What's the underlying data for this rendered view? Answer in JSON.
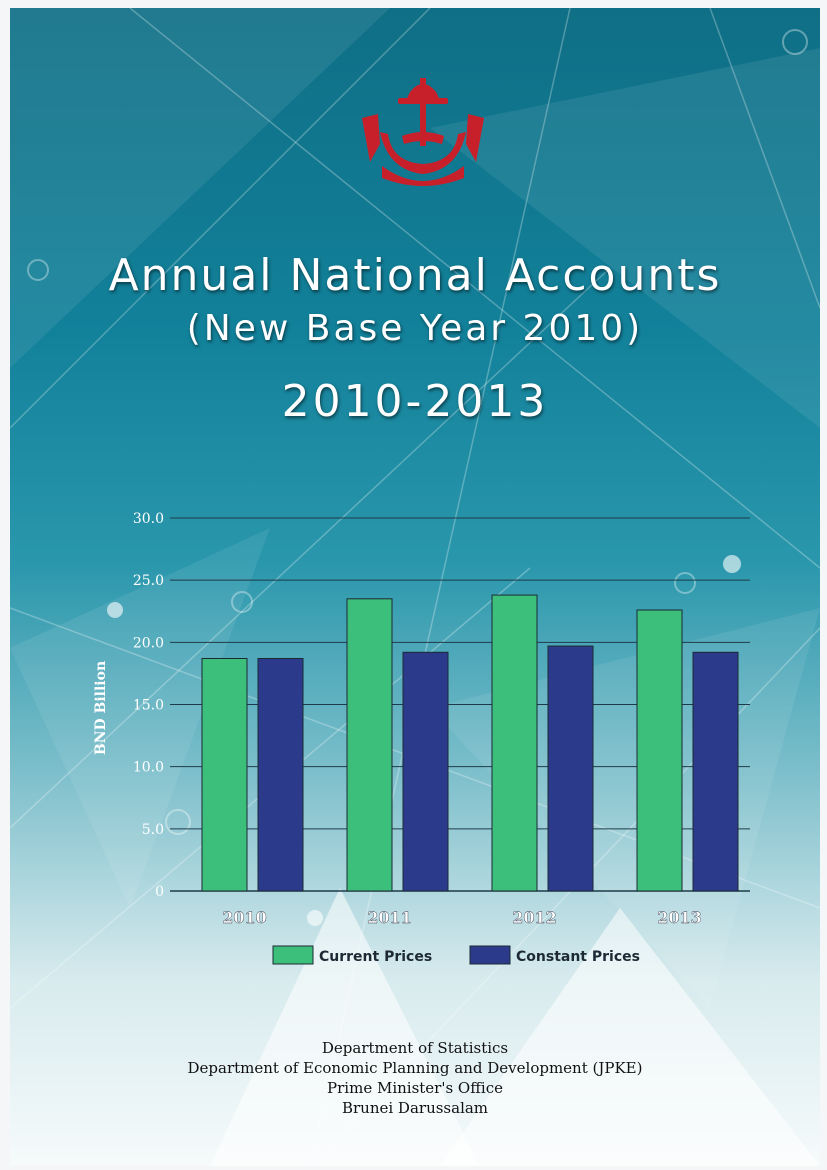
{
  "title": "Annual National Accounts",
  "subtitle": "(New Base Year 2010)",
  "years": "2010-2013",
  "footer": {
    "line1": "Department of Statistics",
    "line2": "Department of Economic Planning and Development (JPKE)",
    "line3": "Prime Minister's Office",
    "line4": "Brunei Darussalam"
  },
  "colors": {
    "current": "#3dbf7c",
    "constant": "#2c3a8c",
    "emblem": "#c8202b"
  },
  "chart_data": {
    "type": "bar",
    "categories": [
      "2010",
      "2011",
      "2012",
      "2013"
    ],
    "series": [
      {
        "name": "Current Prices",
        "values": [
          18.7,
          23.5,
          23.8,
          22.6
        ]
      },
      {
        "name": "Constant Prices",
        "values": [
          18.7,
          19.2,
          19.7,
          19.2
        ]
      }
    ],
    "ylabel": "BND Billion",
    "ylim": [
      0,
      30
    ],
    "yticks": [
      {
        "value": 0,
        "label": "0"
      },
      {
        "value": 5,
        "label": "5.0"
      },
      {
        "value": 10,
        "label": "10.0"
      },
      {
        "value": 15,
        "label": "15.0"
      },
      {
        "value": 20,
        "label": "20.0"
      },
      {
        "value": 25,
        "label": "25.0"
      },
      {
        "value": 30,
        "label": "30.0"
      }
    ],
    "grid": true,
    "legend_position": "bottom"
  }
}
